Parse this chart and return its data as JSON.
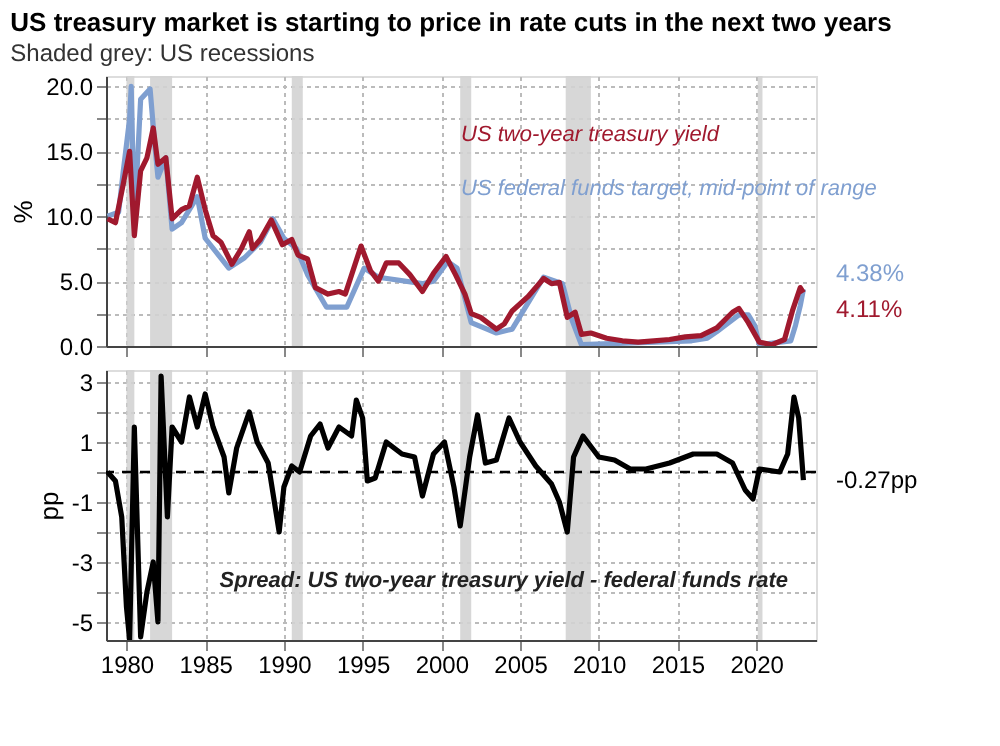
{
  "chart_data": [
    {
      "type": "line",
      "title": "US treasury market is starting to price in rate cuts in the next two years",
      "subtitle": "Shaded grey: US recessions",
      "ylabel": "%",
      "tick_labels": "y",
      "grid": true,
      "xlim": [
        1978.7,
        2023.8
      ],
      "xticks": [
        1980,
        1985,
        1990,
        1995,
        2000,
        2005,
        2010,
        2015,
        2020
      ],
      "ylim": [
        0,
        20.8
      ],
      "yticks": [
        {
          "value": 0,
          "label": "0.0"
        },
        {
          "value": 2.5,
          "label": null
        },
        {
          "value": 5,
          "label": "5.0"
        },
        {
          "value": 7.5,
          "label": null
        },
        {
          "value": 10,
          "label": "10.0"
        },
        {
          "value": 12.5,
          "label": null
        },
        {
          "value": 15,
          "label": "15.0"
        },
        {
          "value": 17.5,
          "label": null
        },
        {
          "value": 20,
          "label": "20.0"
        }
      ],
      "bands": [
        {
          "axis": "x",
          "from": 1980.0,
          "to": 1980.5,
          "color": "#d3d3d3"
        },
        {
          "axis": "x",
          "from": 1981.5,
          "to": 1982.9,
          "color": "#d3d3d3"
        },
        {
          "axis": "x",
          "from": 1990.5,
          "to": 1991.2,
          "color": "#d3d3d3"
        },
        {
          "axis": "x",
          "from": 2001.2,
          "to": 2001.9,
          "color": "#d3d3d3"
        },
        {
          "axis": "x",
          "from": 2007.9,
          "to": 2009.5,
          "color": "#d3d3d3"
        },
        {
          "axis": "x",
          "from": 2020.1,
          "to": 2020.4,
          "color": "#d3d3d3"
        }
      ],
      "series": [
        {
          "name": "US two-year treasury yield",
          "color": "#a0192e",
          "x": [
            1978.8,
            1979.3,
            1979.8,
            1980.2,
            1980.5,
            1980.9,
            1981.3,
            1981.7,
            1982.0,
            1982.5,
            1982.9,
            1983.5,
            1984.0,
            1984.5,
            1985.0,
            1985.5,
            1986.0,
            1986.7,
            1987.3,
            1987.8,
            1988.0,
            1988.5,
            1989.2,
            1989.9,
            1990.5,
            1990.9,
            1991.5,
            1992.0,
            1992.8,
            1993.5,
            1993.9,
            1994.9,
            1995.5,
            1996.0,
            1996.5,
            1997.3,
            1998.0,
            1998.8,
            1999.5,
            2000.3,
            2000.9,
            2001.5,
            2001.9,
            2002.5,
            2003.5,
            2004.0,
            2004.5,
            2005.5,
            2006.5,
            2007.0,
            2007.5,
            2008.0,
            2008.5,
            2008.9,
            2009.5,
            2010.5,
            2011.5,
            2012.5,
            2013.5,
            2014.5,
            2015.5,
            2016.5,
            2017.5,
            2018.5,
            2018.9,
            2019.5,
            2020.2,
            2021.0,
            2021.8,
            2022.3,
            2022.8,
            2023.0
          ],
          "values": [
            9.8,
            9.5,
            12.5,
            15.0,
            8.5,
            13.5,
            14.5,
            16.8,
            14.0,
            14.5,
            9.8,
            10.5,
            10.8,
            13.0,
            10.5,
            8.5,
            8.0,
            6.3,
            7.5,
            8.8,
            7.5,
            8.2,
            9.7,
            7.8,
            8.2,
            7.0,
            6.7,
            4.5,
            4.0,
            4.2,
            4.0,
            7.7,
            5.8,
            5.0,
            6.4,
            6.4,
            5.5,
            4.2,
            5.6,
            6.9,
            5.5,
            4.0,
            2.5,
            2.2,
            1.3,
            1.7,
            2.7,
            3.8,
            5.2,
            4.8,
            4.9,
            2.2,
            2.6,
            0.9,
            1.0,
            0.6,
            0.4,
            0.3,
            0.4,
            0.5,
            0.7,
            0.8,
            1.4,
            2.6,
            2.9,
            1.8,
            0.3,
            0.1,
            0.5,
            2.7,
            4.5,
            4.11
          ]
        },
        {
          "name": "US federal funds target, mid-point of range",
          "color": "#7f9fd0",
          "x": [
            1978.8,
            1979.5,
            1979.8,
            1980.2,
            1980.3,
            1980.5,
            1980.9,
            1981.5,
            1981.8,
            1982.0,
            1982.5,
            1982.9,
            1983.5,
            1984.5,
            1985.0,
            1986.5,
            1987.5,
            1988.5,
            1989.3,
            1990.0,
            1990.8,
            1991.5,
            1992.7,
            1994.0,
            1995.1,
            1996.0,
            1998.8,
            1999.5,
            2000.4,
            2001.0,
            2001.9,
            2002.9,
            2003.5,
            2004.5,
            2006.5,
            2007.7,
            2008.3,
            2008.9,
            2015.9,
            2016.9,
            2017.5,
            2018.9,
            2019.5,
            2019.9,
            2020.2,
            2022.2,
            2022.5,
            2022.8,
            2023.0
          ],
          "values": [
            10.0,
            10.3,
            13.5,
            17.5,
            20.0,
            9.5,
            19.0,
            19.8,
            15.5,
            13.0,
            14.5,
            9.0,
            9.5,
            11.5,
            8.3,
            6.0,
            6.8,
            8.0,
            9.8,
            8.3,
            7.5,
            5.5,
            3.0,
            3.0,
            6.0,
            5.3,
            4.8,
            5.0,
            6.5,
            6.0,
            1.8,
            1.3,
            1.0,
            1.3,
            5.3,
            4.8,
            2.0,
            0.1,
            0.4,
            0.6,
            1.1,
            2.4,
            2.4,
            1.6,
            0.1,
            0.4,
            1.6,
            3.1,
            4.38
          ]
        }
      ],
      "annotations": [
        "4.38%",
        "4.11%"
      ]
    },
    {
      "type": "line",
      "ylabel": "pp",
      "grid": true,
      "xlim": [
        1978.7,
        2023.8
      ],
      "xticks": [
        1980,
        1985,
        1990,
        1995,
        2000,
        2005,
        2010,
        2015,
        2020
      ],
      "ylim": [
        -5.6,
        3.4
      ],
      "yticks": [
        -5,
        {
          "value": -4,
          "label": null
        },
        -3,
        {
          "value": -2,
          "label": null
        },
        -1,
        {
          "value": 0,
          "label": null
        },
        1,
        {
          "value": 2,
          "label": null
        },
        3
      ],
      "bands": [
        {
          "axis": "x",
          "from": 1980.0,
          "to": 1980.5,
          "color": "#d3d3d3"
        },
        {
          "axis": "x",
          "from": 1981.5,
          "to": 1982.9,
          "color": "#d3d3d3"
        },
        {
          "axis": "x",
          "from": 1990.5,
          "to": 1991.2,
          "color": "#d3d3d3"
        },
        {
          "axis": "x",
          "from": 2001.2,
          "to": 2001.9,
          "color": "#d3d3d3"
        },
        {
          "axis": "x",
          "from": 2007.9,
          "to": 2009.5,
          "color": "#d3d3d3"
        },
        {
          "axis": "x",
          "from": 2020.1,
          "to": 2020.4,
          "color": "#d3d3d3"
        }
      ],
      "ref_lines": [
        {
          "axis": "y",
          "value": 0,
          "color": "#000000",
          "line_style": "dashed"
        }
      ],
      "series": [
        {
          "color": "#000000",
          "x": [
            1978.8,
            1979.3,
            1979.7,
            1980.0,
            1980.2,
            1980.5,
            1980.7,
            1980.9,
            1981.3,
            1981.7,
            1982.0,
            1982.2,
            1982.6,
            1982.9,
            1983.5,
            1984.0,
            1984.5,
            1985.0,
            1985.5,
            1986.2,
            1986.5,
            1987.0,
            1987.8,
            1988.3,
            1989.0,
            1989.7,
            1990.0,
            1990.5,
            1991.0,
            1991.7,
            1992.3,
            1992.8,
            1993.5,
            1994.3,
            1994.6,
            1995.0,
            1995.3,
            1995.8,
            1996.5,
            1997.5,
            1998.3,
            1998.8,
            1999.5,
            2000.2,
            2000.8,
            2001.2,
            2001.8,
            2002.3,
            2002.8,
            2003.5,
            2004.3,
            2005.0,
            2006.0,
            2007.0,
            2007.5,
            2008.0,
            2008.4,
            2009.0,
            2010.0,
            2011.0,
            2012.0,
            2013.0,
            2014.5,
            2016.0,
            2017.5,
            2018.5,
            2019.3,
            2019.8,
            2020.2,
            2021.5,
            2022.0,
            2022.4,
            2022.7,
            2023.0
          ],
          "values": [
            0.0,
            -0.3,
            -1.5,
            -4.5,
            -5.6,
            1.5,
            -2.0,
            -5.5,
            -4.0,
            -3.0,
            -5.0,
            3.2,
            -1.5,
            1.5,
            1.0,
            2.5,
            1.5,
            2.6,
            1.5,
            0.5,
            -0.7,
            0.8,
            2.0,
            1.0,
            0.3,
            -2.0,
            -0.5,
            0.2,
            0.0,
            1.2,
            1.6,
            0.8,
            1.5,
            1.2,
            2.4,
            1.8,
            -0.3,
            -0.2,
            1.0,
            0.6,
            0.5,
            -0.8,
            0.6,
            1.0,
            -0.5,
            -1.8,
            0.5,
            1.9,
            0.3,
            0.4,
            1.8,
            1.0,
            0.2,
            -0.4,
            -1.0,
            -2.0,
            0.5,
            1.2,
            0.5,
            0.4,
            0.1,
            0.1,
            0.3,
            0.6,
            0.6,
            0.3,
            -0.6,
            -0.9,
            0.1,
            0.0,
            0.6,
            2.5,
            1.8,
            -0.27
          ]
        }
      ],
      "annotations": [
        "Spread: US two-year treasury yield - federal funds rate",
        "-0.27pp"
      ]
    }
  ]
}
